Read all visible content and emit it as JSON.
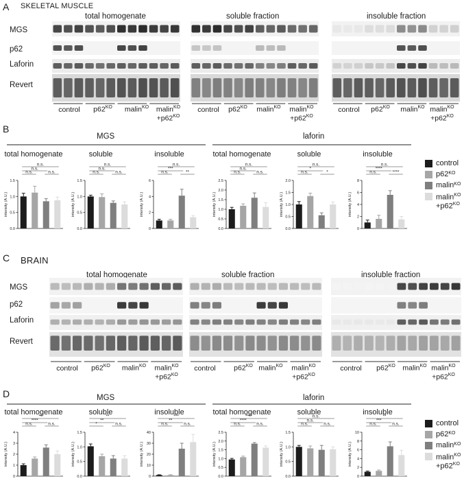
{
  "colors": {
    "control": "#1c1c1c",
    "p62KO": "#a6a6a6",
    "malinKO": "#7f7f7f",
    "malinKO_p62KO": "#dcdcdc"
  },
  "panel_letters": [
    "A",
    "B",
    "C",
    "D"
  ],
  "A": {
    "title": "SKELETAL MUSCLE",
    "fractions": [
      "total homogenate",
      "soluble fraction",
      "insoluble fraction"
    ],
    "rows": [
      "MGS",
      "p62",
      "Laforin",
      "Revert"
    ]
  },
  "C": {
    "title": "BRAIN",
    "fractions": [
      "total homogenate",
      "soluble fraction",
      "insoluble fraction"
    ],
    "rows": [
      "MGS",
      "p62",
      "Laforin",
      "Revert"
    ]
  },
  "lane_groups": {
    "control": "control",
    "p62": "p62",
    "malin": "malin",
    "malin_line1": "malin",
    "p62_line2": "+p62",
    "ko": "KO"
  },
  "legend": {
    "control": "control",
    "p62": "p62",
    "malin": "malin",
    "malin2_l1": "malin",
    "malin2_l2": "+p62",
    "ko": "KO"
  },
  "chart_data": [
    {
      "type": "bar",
      "panel": "B",
      "group": "MGS",
      "subtitle": "total homogenate",
      "categories": [
        "control",
        "p62KO",
        "malinKO",
        "malinKO+p62KO"
      ],
      "values": [
        1.0,
        1.12,
        0.85,
        0.88
      ],
      "errors": [
        0.1,
        0.2,
        0.08,
        0.1
      ],
      "ylim": [
        0,
        1.5
      ],
      "ticks": [
        "0.0",
        "0.5",
        "1.0",
        "1.5"
      ],
      "ylabel": "intensity (A.U.)",
      "sig": [
        [
          "n.s.",
          "n.s.",
          "n.s."
        ],
        [
          "n.s."
        ]
      ]
    },
    {
      "type": "bar",
      "panel": "B",
      "group": "MGS",
      "subtitle": "soluble",
      "categories": [
        "control",
        "p62KO",
        "malinKO",
        "malinKO+p62KO"
      ],
      "values": [
        1.0,
        0.98,
        0.8,
        0.75
      ],
      "errors": [
        0.04,
        0.1,
        0.06,
        0.08
      ],
      "ylim": [
        0,
        1.5
      ],
      "ticks": [
        "0.0",
        "0.5",
        "1.0",
        "1.5"
      ],
      "ylabel": "intensity (A.U.)",
      "sig": [
        [
          "n.s.",
          "n.s.",
          "n.s."
        ],
        [
          "n.s."
        ]
      ]
    },
    {
      "type": "bar",
      "panel": "B",
      "group": "MGS",
      "subtitle": "insoluble",
      "categories": [
        "control",
        "p62KO",
        "malinKO",
        "malinKO+p62KO"
      ],
      "values": [
        1.0,
        1.0,
        4.1,
        1.4
      ],
      "errors": [
        0.15,
        0.15,
        0.8,
        0.2
      ],
      "ylim": [
        0,
        6
      ],
      "ticks": [
        "0",
        "2",
        "4",
        "6"
      ],
      "ylabel": "intensity (A.U.)",
      "sig": [
        [
          "n.s.",
          "***",
          "**"
        ],
        [
          "n.s."
        ]
      ]
    },
    {
      "type": "bar",
      "panel": "B",
      "group": "laforin",
      "subtitle": "total homogenate",
      "categories": [
        "control",
        "p62KO",
        "malinKO",
        "malinKO+p62KO"
      ],
      "values": [
        1.0,
        1.18,
        1.6,
        1.12
      ],
      "errors": [
        0.1,
        0.1,
        0.25,
        0.22
      ],
      "ylim": [
        0,
        2.5
      ],
      "ticks": [
        "0.0",
        "0.5",
        "1.0",
        "1.5",
        "2.0",
        "2.5"
      ],
      "ylabel": "intensity (A.U.)",
      "sig": [
        [
          "n.s.",
          "n.s.",
          "n.s."
        ],
        [
          "n.s."
        ]
      ]
    },
    {
      "type": "bar",
      "panel": "B",
      "group": "laforin",
      "subtitle": "soluble",
      "categories": [
        "control",
        "p62KO",
        "malinKO",
        "malinKO+p62KO"
      ],
      "values": [
        1.0,
        1.35,
        0.55,
        1.0
      ],
      "errors": [
        0.12,
        0.12,
        0.1,
        0.1
      ],
      "ylim": [
        0,
        2.0
      ],
      "ticks": [
        "0.0",
        "0.5",
        "1.0",
        "1.5",
        "2.0"
      ],
      "ylabel": "intensity (A.U.)",
      "sig": [
        [
          "n.s.",
          "*",
          "*"
        ],
        [
          "n.s."
        ]
      ]
    },
    {
      "type": "bar",
      "panel": "B",
      "group": "laforin",
      "subtitle": "insoluble",
      "categories": [
        "control",
        "p62KO",
        "malinKO",
        "malinKO+p62KO"
      ],
      "values": [
        1.0,
        1.6,
        5.6,
        1.5
      ],
      "errors": [
        0.4,
        0.6,
        0.7,
        0.5
      ],
      "ylim": [
        0,
        8
      ],
      "ticks": [
        "0",
        "2",
        "4",
        "6",
        "8"
      ],
      "ylabel": "intensity (A.U.)",
      "sig": [
        [
          "n.s.",
          "****",
          "****"
        ],
        [
          "n.s."
        ]
      ]
    },
    {
      "type": "bar",
      "panel": "D",
      "group": "MGS",
      "subtitle": "total homogenate",
      "categories": [
        "control",
        "p62KO",
        "malinKO",
        "malinKO+p62KO"
      ],
      "values": [
        1.0,
        1.6,
        2.6,
        2.0
      ],
      "errors": [
        0.12,
        0.15,
        0.25,
        0.3
      ],
      "ylim": [
        0,
        4
      ],
      "ticks": [
        "0",
        "1",
        "2",
        "3",
        "4"
      ],
      "ylabel": "intensity (A.U.)",
      "sig": [
        [
          "n.s.",
          "****",
          "n.s."
        ],
        [
          "**"
        ]
      ]
    },
    {
      "type": "bar",
      "panel": "D",
      "group": "MGS",
      "subtitle": "soluble",
      "categories": [
        "control",
        "p62KO",
        "malinKO",
        "malinKO+p62KO"
      ],
      "values": [
        1.02,
        0.68,
        0.6,
        0.6
      ],
      "errors": [
        0.08,
        0.07,
        0.1,
        0.1
      ],
      "ylim": [
        0,
        1.5
      ],
      "ticks": [
        "0.0",
        "0.5",
        "1.0",
        "1.5"
      ],
      "ylabel": "intensity (A.U.)",
      "sig": [
        [
          "*",
          "**",
          "n.s."
        ],
        [
          "**"
        ]
      ]
    },
    {
      "type": "bar",
      "panel": "D",
      "group": "MGS",
      "subtitle": "insoluble",
      "categories": [
        "control",
        "p62KO",
        "malinKO",
        "malinKO+p62KO"
      ],
      "values": [
        1.0,
        1.0,
        25.0,
        31.0
      ],
      "errors": [
        0.3,
        0.3,
        5.0,
        7.0
      ],
      "ylim": [
        0,
        40
      ],
      "ticks": [
        "0",
        "10",
        "20",
        "30",
        "40"
      ],
      "ylabel": "intensity (A.U.)",
      "sig": [
        [
          "n.s.",
          "**",
          "n.s."
        ],
        [
          "***"
        ]
      ]
    },
    {
      "type": "bar",
      "panel": "D",
      "group": "laforin",
      "subtitle": "total homogenate",
      "categories": [
        "control",
        "p62KO",
        "malinKO",
        "malinKO+p62KO"
      ],
      "values": [
        0.95,
        1.08,
        1.85,
        1.62
      ],
      "errors": [
        0.06,
        0.06,
        0.06,
        0.1
      ],
      "ylim": [
        0,
        2.5
      ],
      "ticks": [
        "0.0",
        "0.5",
        "1.0",
        "1.5",
        "2.0",
        "2.5"
      ],
      "ylabel": "intensity (A.U.)",
      "sig": [
        [
          "n.s.",
          "****",
          "n.s."
        ],
        [
          "****"
        ]
      ]
    },
    {
      "type": "bar",
      "panel": "D",
      "group": "laforin",
      "subtitle": "soluble",
      "categories": [
        "control",
        "p62KO",
        "malinKO",
        "malinKO+p62KO"
      ],
      "values": [
        1.0,
        0.95,
        0.9,
        0.92
      ],
      "errors": [
        0.05,
        0.08,
        0.15,
        0.08
      ],
      "ylim": [
        0,
        1.5
      ],
      "ticks": [
        "0.0",
        "0.5",
        "1.0",
        "1.5"
      ],
      "ylabel": "intensity (A.U.)",
      "sig": [
        [
          "n.s.",
          "n.s.",
          "n.s."
        ],
        [
          "n.s."
        ]
      ]
    },
    {
      "type": "bar",
      "panel": "D",
      "group": "laforin",
      "subtitle": "insoluble",
      "categories": [
        "control",
        "p62KO",
        "malinKO",
        "malinKO+p62KO"
      ],
      "values": [
        1.0,
        1.2,
        6.8,
        4.8
      ],
      "errors": [
        0.15,
        0.2,
        1.0,
        1.1
      ],
      "ylim": [
        0,
        10
      ],
      "ticks": [
        "0",
        "2",
        "4",
        "6",
        "8",
        "10"
      ],
      "ylabel": "intensity (A.U.)",
      "sig": [
        [
          "n.s.",
          "***",
          "n.s."
        ],
        [
          "**"
        ]
      ]
    }
  ]
}
